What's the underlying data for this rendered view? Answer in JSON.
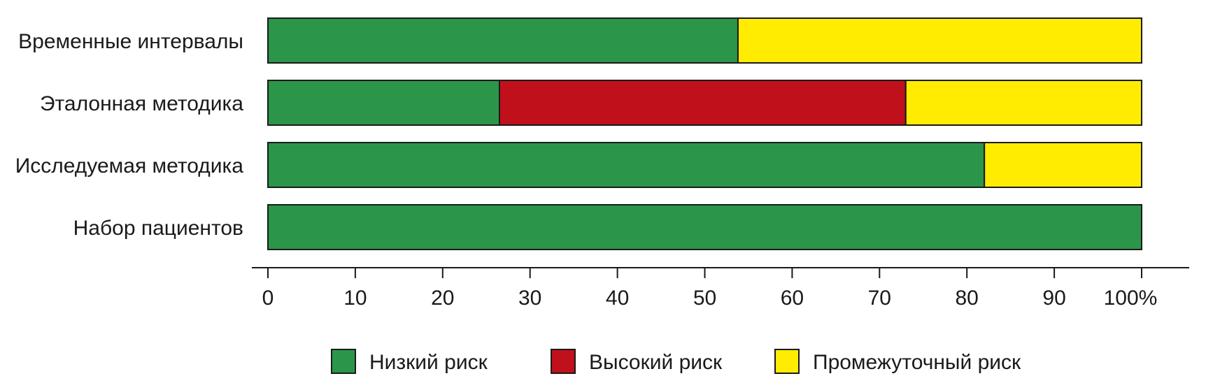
{
  "chart_data": {
    "type": "bar",
    "orientation": "horizontal",
    "stacked": true,
    "categories": [
      "Временные интервалы",
      "Эталонная методика",
      "Исследуемая методика",
      "Набор пациентов"
    ],
    "series": [
      {
        "name": "Низкий риск",
        "color": "#2b964a",
        "values": [
          53.8,
          26.5,
          82,
          100
        ]
      },
      {
        "name": "Высокий риск",
        "color": "#c0101c",
        "values": [
          0,
          46.5,
          0,
          0
        ]
      },
      {
        "name": "Промежуточный риск",
        "color": "#ffec00",
        "values": [
          46.2,
          27,
          18,
          0
        ]
      }
    ],
    "legend_order": [
      0,
      1,
      2
    ],
    "xlim": [
      0,
      100
    ],
    "x_ticks": [
      "0",
      "10",
      "20",
      "30",
      "40",
      "50",
      "60",
      "70",
      "80",
      "90",
      "100%"
    ],
    "legend_position": "bottom",
    "grid": false
  }
}
